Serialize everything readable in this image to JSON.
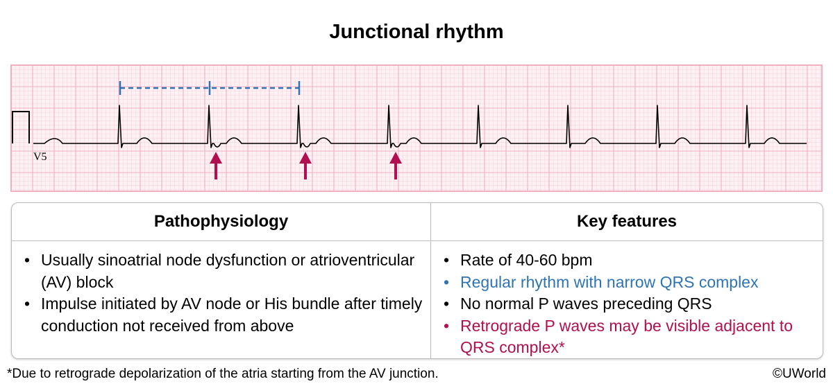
{
  "title": "Junctional rhythm",
  "ecg": {
    "lead_label": "V5",
    "colors": {
      "grid_fine": "#f6cfd8",
      "grid_major": "#efb0c0",
      "trace": "#000000",
      "rr_marker": "#2e74b5",
      "arrow": "#b0104f"
    }
  },
  "table": {
    "left": {
      "heading": "Pathophysiology",
      "items": [
        {
          "text": "Usually sinoatrial node dysfunction or atrioventricular (AV) block",
          "color": "black"
        },
        {
          "text": "Impulse initiated by AV node or His bundle after timely conduction not received from above",
          "color": "black"
        }
      ]
    },
    "right": {
      "heading": "Key features",
      "items": [
        {
          "text": "Rate of 40-60 bpm",
          "color": "black"
        },
        {
          "text": "Regular rhythm with narrow QRS complex",
          "color": "blue"
        },
        {
          "text": "No normal P waves preceding QRS",
          "color": "black"
        },
        {
          "text": "Retrograde P waves may be visible adjacent to QRS complex*",
          "color": "magenta"
        }
      ]
    }
  },
  "footnote": "*Due to retrograde depolarization of the atria starting from the AV junction.",
  "copyright": "©UWorld"
}
